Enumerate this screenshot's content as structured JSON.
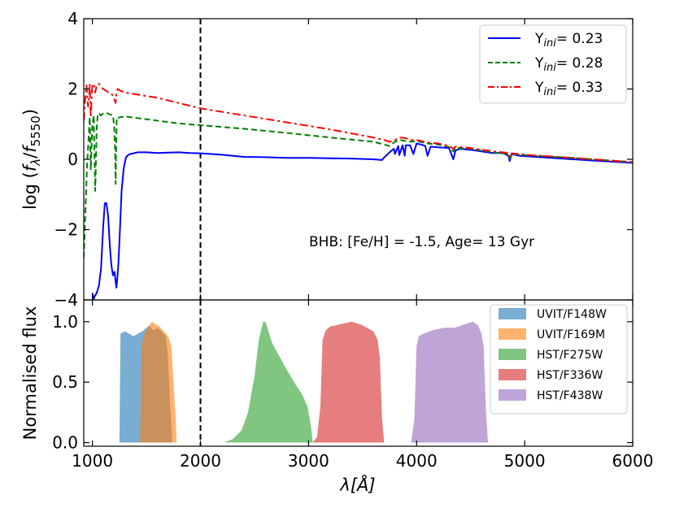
{
  "chart_data": [
    {
      "type": "line",
      "panel": "top",
      "ylabel_parts": [
        "log (",
        "f",
        "λ",
        "/",
        "f",
        "5550",
        ")"
      ],
      "xlim": [
        920,
        6000
      ],
      "ylim": [
        -4,
        4
      ],
      "yticks": [
        -4,
        -2,
        0,
        2,
        4
      ],
      "ytick_labels": [
        "−4",
        "−2",
        "0",
        "2",
        "4"
      ],
      "vline_x": 2000,
      "annotation": "BHB: [Fe/H] = -1.5, Age= 13 Gyr",
      "legend_position": "top-right",
      "series": [
        {
          "name": "Y_ini= 0.23",
          "label_main": "Y",
          "label_sub": "ini",
          "label_value": "= 0.23",
          "color": "#0000ff",
          "style": "solid",
          "x": [
            1000,
            1010,
            1020,
            1040,
            1060,
            1080,
            1100,
            1115,
            1130,
            1145,
            1160,
            1175,
            1190,
            1205,
            1215,
            1222,
            1230,
            1240,
            1255,
            1270,
            1290,
            1310,
            1330,
            1350,
            1380,
            1420,
            1500,
            1600,
            1700,
            1800,
            1900,
            2000,
            2200,
            2400,
            2600,
            2800,
            3000,
            3200,
            3400,
            3600,
            3680,
            3700,
            3750,
            3790,
            3800,
            3830,
            3840,
            3870,
            3890,
            3900,
            3940,
            3970,
            4000,
            4040,
            4080,
            4101,
            4130,
            4200,
            4300,
            4340,
            4360,
            4400,
            4500,
            4700,
            4800,
            4850,
            4861,
            4880,
            4950,
            5200,
            5600,
            6000
          ],
          "y": [
            -3.8,
            -4,
            -3.9,
            -3.8,
            -3.6,
            -3.1,
            -1.9,
            -1.25,
            -1.25,
            -1.6,
            -2.4,
            -3.0,
            -3.3,
            -3.2,
            -3.5,
            -3.65,
            -3.4,
            -3.0,
            -2.0,
            -0.9,
            -0.25,
            0.05,
            0.12,
            0.15,
            0.17,
            0.2,
            0.2,
            0.18,
            0.19,
            0.2,
            0.18,
            0.17,
            0.13,
            0.07,
            0.06,
            0.04,
            0.04,
            0.03,
            0.02,
            0.0,
            -0.02,
            0.05,
            0.2,
            0.3,
            0.15,
            0.38,
            0.12,
            0.4,
            0.1,
            0.4,
            0.4,
            0.15,
            0.45,
            0.42,
            0.38,
            0.1,
            0.36,
            0.34,
            0.32,
            0.0,
            0.25,
            0.3,
            0.27,
            0.18,
            0.18,
            0.1,
            -0.05,
            0.15,
            0.1,
            0.05,
            -0.03,
            -0.1
          ]
        },
        {
          "name": "Y_ini= 0.28",
          "label_main": "Y",
          "label_sub": "ini",
          "label_value": "= 0.28",
          "color": "#007f00",
          "style": "dashed",
          "x": [
            920,
            935,
            950,
            965,
            975,
            985,
            998,
            1012,
            1026,
            1040,
            1050,
            1060,
            1080,
            1100,
            1130,
            1160,
            1190,
            1200,
            1210,
            1215,
            1220,
            1225,
            1230,
            1240,
            1260,
            1300,
            1400,
            1600,
            1800,
            2000,
            2400,
            2800,
            3200,
            3600,
            3700,
            3750,
            3800,
            3850,
            3900,
            3950,
            4000,
            4100,
            4200,
            4300,
            4340,
            4360,
            4400,
            4500,
            4700,
            4850,
            4861,
            4880,
            5000,
            5400,
            6000
          ],
          "y": [
            -2.8,
            -1.5,
            -0.2,
            0.6,
            1.2,
            -0.3,
            0.9,
            1.25,
            -0.9,
            0.9,
            1.3,
            1.3,
            1.25,
            1.3,
            1.32,
            1.28,
            1.25,
            1.0,
            0.3,
            -0.7,
            0.5,
            1.15,
            1.2,
            1.18,
            1.2,
            1.22,
            1.18,
            1.1,
            1.02,
            0.97,
            0.87,
            0.75,
            0.62,
            0.5,
            0.42,
            0.38,
            0.5,
            0.55,
            0.52,
            0.5,
            0.52,
            0.45,
            0.42,
            0.35,
            0.22,
            0.33,
            0.32,
            0.3,
            0.2,
            0.15,
            0.02,
            0.15,
            0.12,
            0.05,
            -0.08
          ]
        },
        {
          "name": "Y_ini= 0.33",
          "label_main": "Y",
          "label_sub": "ini",
          "label_value": "= 0.33",
          "color": "#ff0000",
          "style": "dashdot",
          "x": [
            920,
            930,
            945,
            960,
            970,
            975,
            985,
            998,
            1012,
            1026,
            1040,
            1060,
            1080,
            1100,
            1140,
            1180,
            1200,
            1215,
            1220,
            1225,
            1235,
            1260,
            1300,
            1400,
            1600,
            1800,
            2000,
            2400,
            2800,
            3200,
            3600,
            3700,
            3750,
            3800,
            3850,
            3900,
            3950,
            4000,
            4100,
            4200,
            4300,
            4340,
            4360,
            4400,
            4500,
            4700,
            4850,
            4861,
            4880,
            5000,
            5400,
            6000
          ],
          "y": [
            1.1,
            1.6,
            2.1,
            1.5,
            1.8,
            2.15,
            1.2,
            2.1,
            2.15,
            1.9,
            2.1,
            2.15,
            2.05,
            2.0,
            1.92,
            1.85,
            1.75,
            1.6,
            1.8,
            1.95,
            2.0,
            1.95,
            1.9,
            1.85,
            1.75,
            1.6,
            1.45,
            1.25,
            1.05,
            0.85,
            0.62,
            0.55,
            0.5,
            0.55,
            0.62,
            0.6,
            0.55,
            0.55,
            0.48,
            0.45,
            0.38,
            0.3,
            0.36,
            0.35,
            0.32,
            0.23,
            0.18,
            0.05,
            0.17,
            0.13,
            0.05,
            -0.08
          ]
        }
      ]
    },
    {
      "type": "area",
      "panel": "bottom",
      "xlabel_symbol": "λ",
      "xlabel_unit": "[Å]",
      "ylabel": "Normalised flux",
      "xlim": [
        920,
        6000
      ],
      "ylim": [
        -0.03,
        1.18
      ],
      "xticks": [
        1000,
        2000,
        3000,
        4000,
        5000,
        6000
      ],
      "xtick_labels": [
        "1000",
        "2000",
        "3000",
        "4000",
        "5000",
        "6000"
      ],
      "yticks": [
        0.0,
        0.5,
        1.0
      ],
      "ytick_labels": [
        "0.0",
        "0.5",
        "1.0"
      ],
      "vline_x": 2000,
      "legend_position": "top-right",
      "series": [
        {
          "name": "UVIT/F148W",
          "color": "#1f77b4",
          "opacity": 0.6,
          "x": [
            1250,
            1260,
            1300,
            1340,
            1380,
            1420,
            1460,
            1500,
            1530,
            1560,
            1600,
            1640,
            1680,
            1700,
            1720,
            1740
          ],
          "y": [
            0,
            0.9,
            0.92,
            0.9,
            0.88,
            0.9,
            0.92,
            0.95,
            0.97,
            0.93,
            0.95,
            0.92,
            0.88,
            0.7,
            0.3,
            0
          ]
        },
        {
          "name": "UVIT/F169M",
          "color": "#ff7f0e",
          "opacity": 0.6,
          "x": [
            1440,
            1455,
            1480,
            1520,
            1550,
            1580,
            1620,
            1660,
            1700,
            1730,
            1750,
            1770,
            1780
          ],
          "y": [
            0,
            0.8,
            0.9,
            0.96,
            1.0,
            0.98,
            0.96,
            0.92,
            0.88,
            0.8,
            0.5,
            0.2,
            0
          ]
        },
        {
          "name": "HST/F275W",
          "color": "#2ca02c",
          "opacity": 0.6,
          "x": [
            2220,
            2300,
            2380,
            2440,
            2500,
            2540,
            2580,
            2600,
            2620,
            2660,
            2720,
            2800,
            2880,
            2940,
            2990,
            3020,
            3040
          ],
          "y": [
            0,
            0.03,
            0.1,
            0.25,
            0.55,
            0.85,
            1.0,
            1.0,
            0.95,
            0.83,
            0.73,
            0.6,
            0.48,
            0.4,
            0.3,
            0.15,
            0
          ]
        },
        {
          "name": "HST/F336W",
          "color": "#d62728",
          "opacity": 0.6,
          "x": [
            3040,
            3080,
            3110,
            3130,
            3160,
            3200,
            3300,
            3400,
            3500,
            3600,
            3640,
            3660,
            3680,
            3700
          ],
          "y": [
            0,
            0.05,
            0.3,
            0.85,
            0.93,
            0.96,
            0.98,
            1.0,
            0.97,
            0.92,
            0.85,
            0.7,
            0.2,
            0
          ]
        },
        {
          "name": "HST/F438W",
          "color": "#9467bd",
          "opacity": 0.6,
          "x": [
            3950,
            3980,
            4000,
            4020,
            4060,
            4150,
            4250,
            4350,
            4450,
            4520,
            4570,
            4600,
            4620,
            4640,
            4660
          ],
          "y": [
            0,
            0.2,
            0.8,
            0.88,
            0.9,
            0.93,
            0.95,
            0.95,
            0.98,
            1.0,
            0.97,
            0.9,
            0.8,
            0.3,
            0
          ]
        }
      ]
    }
  ]
}
